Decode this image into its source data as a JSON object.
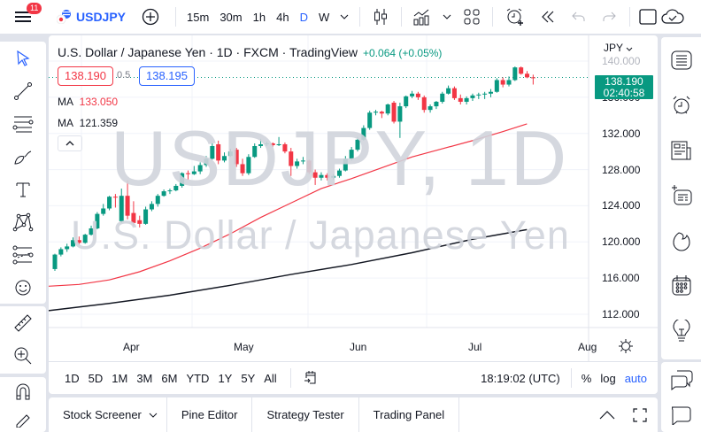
{
  "topbar": {
    "notifications_count": "11",
    "symbol": "USDJPY",
    "intervals": [
      "15m",
      "30m",
      "1h",
      "4h",
      "D",
      "W"
    ],
    "active_interval": "D",
    "partial_label": "W"
  },
  "legend": {
    "title": "U.S. Dollar / Japanese Yen · 1D · FXCM · TradingView",
    "change": "+0.064 (+0.05%)",
    "sell_price": "138.190",
    "spread": "0.5",
    "buy_price": "138.195",
    "ma1_label": "MA",
    "ma1_value": "133.050",
    "ma2_label": "MA",
    "ma2_value": "121.359"
  },
  "watermark": {
    "symbol_interval": "USDJPY, 1D",
    "description": "U.S. Dollar / Japanese Yen"
  },
  "price_scale": {
    "currency": "JPY",
    "labels": [
      "140.000",
      "136.000",
      "132.000",
      "128.000",
      "124.000",
      "120.000",
      "116.000",
      "112.000"
    ],
    "last_price": "138.190",
    "countdown": "02:40:58"
  },
  "time_scale": {
    "labels": [
      "Apr",
      "May",
      "Jun",
      "Jul",
      "Aug"
    ]
  },
  "range_bar": {
    "ranges": [
      "1D",
      "5D",
      "1M",
      "3M",
      "6M",
      "YTD",
      "1Y",
      "5Y",
      "All"
    ],
    "clock": "18:19:02 (UTC)",
    "percent_label": "%",
    "log_label": "log",
    "auto_label": "auto"
  },
  "bottom_tabs": [
    "Stock Screener",
    "Pine Editor",
    "Strategy Tester",
    "Trading Panel"
  ],
  "colors": {
    "up": "#089981",
    "down": "#f23645",
    "ma_fast": "#f23645",
    "ma_slow": "#131722",
    "accent": "#2962ff"
  },
  "chart_data": {
    "type": "candlestick",
    "title": "U.S. Dollar / Japanese Yen · 1D · FXCM",
    "ylim": [
      110.5,
      141
    ],
    "y_ticks": [
      112,
      116,
      120,
      124,
      128,
      132,
      136,
      140
    ],
    "x_ticks": [
      "Apr",
      "May",
      "Jun",
      "Jul",
      "Aug"
    ],
    "candles": [
      [
        117.0,
        118.7,
        116.8,
        118.6
      ],
      [
        118.6,
        119.4,
        118.4,
        119.2
      ],
      [
        119.2,
        119.8,
        118.9,
        119.5
      ],
      [
        119.5,
        120.5,
        119.4,
        120.2
      ],
      [
        120.2,
        120.6,
        119.7,
        119.9
      ],
      [
        119.9,
        120.9,
        119.8,
        120.8
      ],
      [
        120.8,
        121.8,
        120.7,
        121.5
      ],
      [
        121.5,
        123.3,
        121.4,
        123.1
      ],
      [
        123.1,
        124.2,
        122.9,
        123.7
      ],
      [
        123.7,
        125.1,
        123.5,
        125.0
      ],
      [
        125.0,
        125.3,
        123.8,
        124.9
      ],
      [
        122.3,
        125.9,
        122.1,
        125.1
      ],
      [
        125.1,
        126.8,
        122.5,
        122.9
      ],
      [
        123.2,
        124.5,
        121.8,
        122.1
      ],
      [
        122.4,
        122.9,
        121.6,
        122.0
      ],
      [
        122.0,
        123.9,
        121.9,
        123.6
      ],
      [
        123.6,
        124.5,
        123.4,
        124.2
      ],
      [
        124.2,
        125.3,
        123.9,
        125.1
      ],
      [
        125.1,
        125.8,
        125.0,
        125.6
      ],
      [
        125.6,
        125.9,
        125.3,
        125.7
      ],
      [
        125.7,
        126.4,
        125.6,
        126.2
      ],
      [
        126.2,
        127.7,
        126.0,
        127.6
      ],
      [
        127.6,
        127.9,
        126.9,
        127.5
      ],
      [
        127.5,
        128.4,
        127.4,
        127.8
      ],
      [
        127.8,
        128.8,
        127.5,
        128.5
      ],
      [
        128.5,
        129.5,
        128.3,
        129.2
      ],
      [
        129.2,
        130.9,
        129.1,
        130.6
      ],
      [
        130.8,
        131.2,
        128.6,
        129.0
      ],
      [
        129.0,
        129.9,
        128.8,
        129.5
      ],
      [
        129.5,
        130.3,
        129.4,
        130.0
      ],
      [
        130.2,
        130.4,
        128.3,
        128.6
      ],
      [
        128.6,
        129.2,
        127.3,
        127.6
      ],
      [
        127.6,
        129.7,
        127.4,
        129.4
      ],
      [
        129.4,
        130.9,
        129.3,
        130.6
      ],
      [
        130.6,
        131.4,
        130.4,
        130.8
      ],
      [
        130.8,
        131.1,
        130.6,
        130.9
      ],
      [
        130.9,
        131.0,
        130.5,
        130.7
      ],
      [
        130.7,
        131.6,
        130.6,
        130.8
      ],
      [
        130.8,
        131.0,
        129.8,
        130.0
      ],
      [
        130.0,
        130.4,
        127.3,
        128.4
      ],
      [
        128.4,
        129.2,
        128.1,
        128.9
      ],
      [
        128.9,
        129.4,
        128.6,
        129.0
      ],
      [
        129.0,
        129.1,
        127.5,
        127.7
      ],
      [
        127.7,
        128.0,
        126.3,
        127.1
      ],
      [
        127.1,
        127.7,
        126.8,
        127.4
      ],
      [
        127.4,
        127.6,
        126.8,
        127.1
      ],
      [
        127.1,
        127.5,
        126.9,
        127.3
      ],
      [
        127.3,
        128.1,
        127.1,
        127.9
      ],
      [
        127.9,
        129.5,
        127.8,
        129.2
      ],
      [
        129.2,
        130.5,
        129.0,
        130.2
      ],
      [
        130.2,
        131.6,
        130.0,
        131.3
      ],
      [
        131.3,
        132.9,
        131.2,
        132.6
      ],
      [
        132.6,
        134.5,
        132.4,
        134.3
      ],
      [
        134.3,
        134.6,
        134.0,
        134.4
      ],
      [
        134.4,
        134.5,
        133.7,
        134.2
      ],
      [
        134.2,
        135.3,
        134.0,
        135.2
      ],
      [
        135.4,
        135.6,
        133.1,
        133.3
      ],
      [
        133.3,
        135.4,
        131.5,
        135.0
      ],
      [
        135.0,
        136.2,
        134.8,
        136.1
      ],
      [
        136.1,
        136.7,
        135.9,
        136.4
      ],
      [
        136.4,
        136.6,
        135.7,
        136.0
      ],
      [
        136.0,
        136.2,
        134.3,
        134.6
      ],
      [
        134.6,
        135.2,
        134.3,
        135.0
      ],
      [
        135.0,
        135.6,
        134.7,
        135.5
      ],
      [
        135.5,
        136.6,
        135.3,
        136.4
      ],
      [
        136.4,
        137.3,
        136.3,
        137.0
      ],
      [
        137.0,
        137.2,
        135.7,
        135.9
      ],
      [
        135.9,
        136.3,
        135.2,
        135.5
      ],
      [
        135.5,
        136.1,
        135.2,
        135.9
      ],
      [
        135.9,
        136.4,
        135.6,
        136.2
      ],
      [
        136.2,
        136.5,
        135.8,
        136.3
      ],
      [
        136.3,
        136.6,
        135.8,
        136.4
      ],
      [
        136.4,
        136.9,
        136.0,
        136.6
      ],
      [
        136.6,
        138.1,
        136.5,
        137.9
      ],
      [
        137.9,
        138.2,
        137.1,
        137.4
      ],
      [
        137.4,
        138.3,
        137.2,
        137.9
      ],
      [
        137.9,
        139.4,
        137.8,
        139.3
      ],
      [
        139.3,
        139.4,
        138.5,
        138.6
      ],
      [
        138.6,
        138.9,
        138.1,
        138.2
      ],
      [
        138.2,
        138.5,
        137.4,
        138.19
      ]
    ],
    "series": [
      {
        "name": "MA (fast)",
        "last_value": 133.05,
        "color": "#f23645",
        "points": [
          [
            0,
            115.1
          ],
          [
            5,
            115.3
          ],
          [
            10,
            115.8
          ],
          [
            15,
            116.7
          ],
          [
            20,
            117.9
          ],
          [
            25,
            119.3
          ],
          [
            30,
            120.9
          ],
          [
            35,
            122.7
          ],
          [
            40,
            124.3
          ],
          [
            45,
            125.9
          ],
          [
            50,
            127.0
          ],
          [
            55,
            128.2
          ],
          [
            60,
            129.4
          ],
          [
            65,
            130.3
          ],
          [
            70,
            131.2
          ],
          [
            75,
            132.2
          ],
          [
            79,
            133.05
          ]
        ]
      },
      {
        "name": "MA (slow)",
        "last_value": 121.359,
        "color": "#131722",
        "points": [
          [
            0,
            112.4
          ],
          [
            10,
            113.2
          ],
          [
            20,
            114.1
          ],
          [
            30,
            115.2
          ],
          [
            40,
            116.4
          ],
          [
            50,
            117.5
          ],
          [
            60,
            118.8
          ],
          [
            70,
            120.3
          ],
          [
            79,
            121.36
          ]
        ]
      }
    ]
  }
}
